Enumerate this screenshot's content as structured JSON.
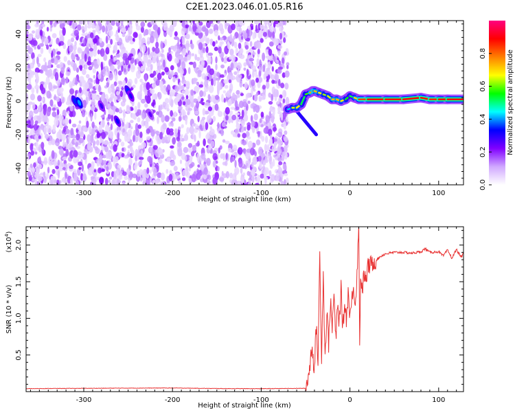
{
  "title": "C2E1.2023.046.01.05.R16",
  "colorbar": {
    "label": "Normalized spectral amplitude",
    "range": [
      0,
      1
    ],
    "ticks": [
      0.0,
      0.2,
      0.4,
      0.6,
      0.8
    ],
    "tick_labels": [
      "0.0",
      "0.2",
      "0.4",
      "0.6",
      "0.8"
    ],
    "colors": [
      "#ffffff",
      "#d0a8ff",
      "#8000ff",
      "#0000ff",
      "#00ffff",
      "#00ff00",
      "#ffff00",
      "#ff8000",
      "#ff0000",
      "#ff0080"
    ]
  },
  "chart_data": [
    {
      "type": "heatmap",
      "xlabel": "Height of straight line (km)",
      "ylabel": "Frequency (Hz)",
      "xlim": [
        -365,
        128
      ],
      "ylim": [
        -50,
        48
      ],
      "x_ticks": [
        -300,
        -200,
        -100,
        0,
        100
      ],
      "x_tick_labels": [
        "-300",
        "-200",
        "-100",
        "0",
        "100"
      ],
      "y_ticks": [
        -40,
        -20,
        0,
        20,
        40
      ],
      "y_tick_labels": [
        "-40",
        "-20",
        "0",
        "20",
        "40"
      ],
      "noise_region": {
        "x": [
          -365,
          -70
        ],
        "amplitude": [
          0.05,
          0.22
        ]
      },
      "signal_trace": {
        "x": [
          -70,
          -65,
          -60,
          -55,
          -50,
          -45,
          -42,
          -40,
          -35,
          -30,
          -25,
          -20,
          -15,
          -10,
          -5,
          0,
          5,
          10,
          20,
          40,
          60,
          80,
          90,
          100,
          110,
          128
        ],
        "frequency": [
          -5,
          -4,
          -4,
          -2,
          4,
          5,
          6,
          6,
          5,
          4,
          3,
          1,
          1,
          0,
          1,
          3,
          2,
          1,
          1,
          1,
          1,
          2,
          1,
          1,
          1,
          1
        ],
        "amplitude": [
          0.3,
          0.55,
          0.75,
          0.6,
          0.45,
          0.7,
          0.8,
          0.75,
          0.7,
          0.65,
          0.6,
          0.7,
          0.75,
          0.7,
          0.65,
          0.45,
          0.6,
          0.8,
          0.88,
          0.9,
          0.88,
          0.9,
          0.85,
          0.88,
          0.9,
          0.88
        ]
      },
      "streak": {
        "x": [
          -60,
          -38
        ],
        "frequency": [
          -6,
          -20
        ]
      },
      "blobs": [
        {
          "x": -310,
          "frequency": 0,
          "amplitude": 0.35
        },
        {
          "x": -305,
          "frequency": -1,
          "amplitude": 0.4
        },
        {
          "x": -250,
          "frequency": 6,
          "amplitude": 0.35
        },
        {
          "x": -280,
          "frequency": -3,
          "amplitude": 0.28
        },
        {
          "x": -262,
          "frequency": -12,
          "amplitude": 0.32
        },
        {
          "x": -247,
          "frequency": 3,
          "amplitude": 0.3
        },
        {
          "x": -225,
          "frequency": -8,
          "amplitude": 0.25
        }
      ]
    },
    {
      "type": "line",
      "xlabel": "Height of straight line (km)",
      "ylabel": "SNR (10 * v/v)",
      "y_exponent_label": "(x10",
      "y_exponent": "4",
      "xlim": [
        -365,
        128
      ],
      "ylim": [
        0,
        22500
      ],
      "x_ticks": [
        -300,
        -200,
        -100,
        0,
        100
      ],
      "x_tick_labels": [
        "-300",
        "-200",
        "-100",
        "0",
        "100"
      ],
      "y_ticks": [
        5000,
        10000,
        15000,
        20000
      ],
      "y_tick_labels": [
        "0.5",
        "1.0",
        "1.5",
        "2.0"
      ],
      "color": "#e83030",
      "series": [
        {
          "x": [
            -365,
            -350,
            -300,
            -250,
            -200,
            -150,
            -100,
            -50,
            -48,
            -45,
            -43,
            -40,
            -38,
            -36,
            -34,
            -32,
            -30,
            -28,
            -26,
            -24,
            -22,
            -20,
            -18,
            -16,
            -14,
            -12,
            -10,
            -8,
            -6,
            -4,
            -2,
            0,
            2,
            4,
            6,
            8,
            10,
            11,
            12,
            14,
            16,
            18,
            20,
            25,
            30,
            35,
            40,
            50,
            60,
            70,
            80,
            85,
            90,
            100,
            105,
            110,
            115,
            120,
            125,
            128
          ],
          "values": [
            400,
            420,
            450,
            480,
            500,
            420,
            400,
            450,
            1500,
            3500,
            6500,
            3000,
            9000,
            4000,
            18500,
            5000,
            16000,
            4500,
            11000,
            6500,
            12500,
            8500,
            13500,
            7000,
            11500,
            9500,
            14000,
            8500,
            12000,
            10000,
            13500,
            10500,
            12000,
            15000,
            11500,
            16500,
            22200,
            7000,
            15500,
            14000,
            16000,
            15000,
            17000,
            17500,
            18000,
            18500,
            18800,
            19000,
            19000,
            18900,
            19100,
            19500,
            19000,
            19100,
            18500,
            19300,
            18200,
            19400,
            18400,
            18800
          ]
        }
      ]
    }
  ]
}
